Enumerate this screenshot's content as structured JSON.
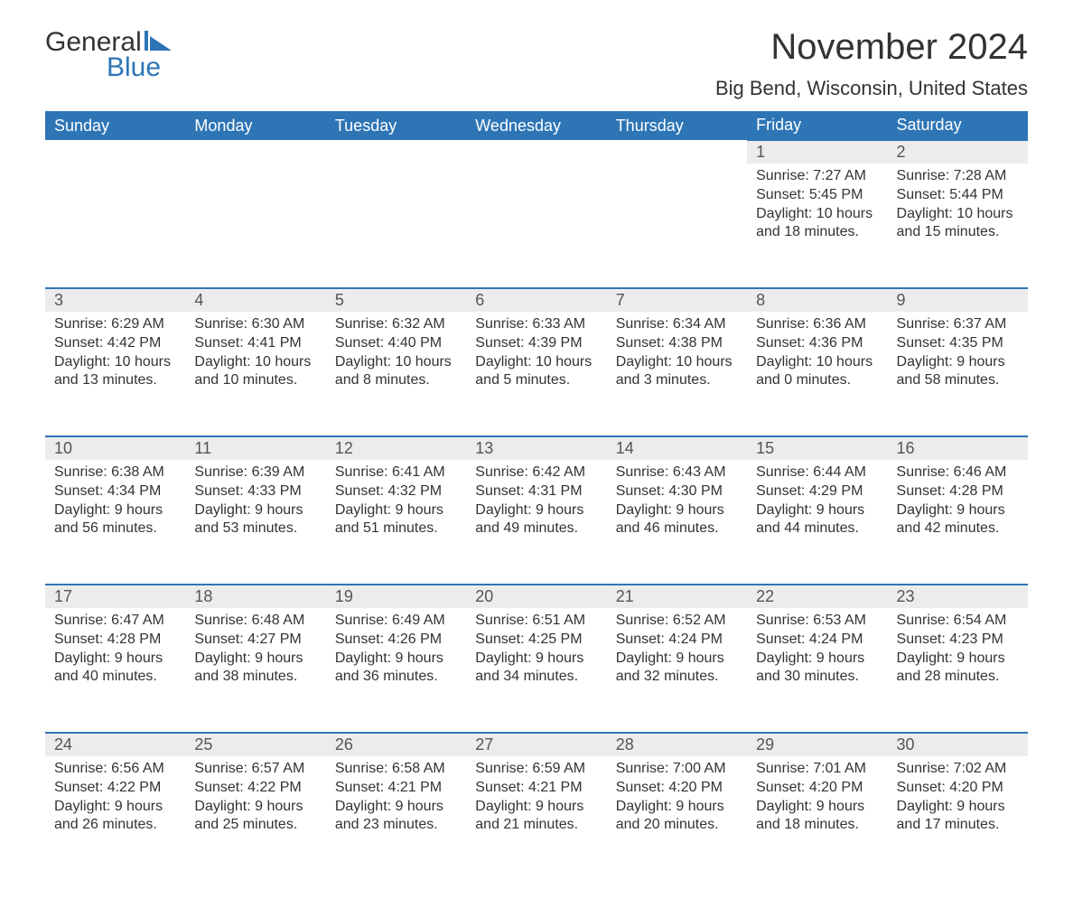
{
  "logo": {
    "word1": "General",
    "word2": "Blue"
  },
  "title": "November 2024",
  "location": "Big Bend, Wisconsin, United States",
  "colors": {
    "header_bg": "#2e75b6",
    "header_text": "#ffffff",
    "row_divider": "#2e75b6",
    "daynum_bg": "#ececec",
    "body_text": "#333333",
    "logo_accent": "#2e75b6",
    "page_bg": "#ffffff"
  },
  "day_headers": [
    "Sunday",
    "Monday",
    "Tuesday",
    "Wednesday",
    "Thursday",
    "Friday",
    "Saturday"
  ],
  "weeks": [
    [
      null,
      null,
      null,
      null,
      null,
      {
        "n": "1",
        "sunrise": "7:27 AM",
        "sunset": "5:45 PM",
        "day_h": "10",
        "day_m": "18"
      },
      {
        "n": "2",
        "sunrise": "7:28 AM",
        "sunset": "5:44 PM",
        "day_h": "10",
        "day_m": "15"
      }
    ],
    [
      {
        "n": "3",
        "sunrise": "6:29 AM",
        "sunset": "4:42 PM",
        "day_h": "10",
        "day_m": "13"
      },
      {
        "n": "4",
        "sunrise": "6:30 AM",
        "sunset": "4:41 PM",
        "day_h": "10",
        "day_m": "10"
      },
      {
        "n": "5",
        "sunrise": "6:32 AM",
        "sunset": "4:40 PM",
        "day_h": "10",
        "day_m": "8"
      },
      {
        "n": "6",
        "sunrise": "6:33 AM",
        "sunset": "4:39 PM",
        "day_h": "10",
        "day_m": "5"
      },
      {
        "n": "7",
        "sunrise": "6:34 AM",
        "sunset": "4:38 PM",
        "day_h": "10",
        "day_m": "3"
      },
      {
        "n": "8",
        "sunrise": "6:36 AM",
        "sunset": "4:36 PM",
        "day_h": "10",
        "day_m": "0"
      },
      {
        "n": "9",
        "sunrise": "6:37 AM",
        "sunset": "4:35 PM",
        "day_h": "9",
        "day_m": "58"
      }
    ],
    [
      {
        "n": "10",
        "sunrise": "6:38 AM",
        "sunset": "4:34 PM",
        "day_h": "9",
        "day_m": "56"
      },
      {
        "n": "11",
        "sunrise": "6:39 AM",
        "sunset": "4:33 PM",
        "day_h": "9",
        "day_m": "53"
      },
      {
        "n": "12",
        "sunrise": "6:41 AM",
        "sunset": "4:32 PM",
        "day_h": "9",
        "day_m": "51"
      },
      {
        "n": "13",
        "sunrise": "6:42 AM",
        "sunset": "4:31 PM",
        "day_h": "9",
        "day_m": "49"
      },
      {
        "n": "14",
        "sunrise": "6:43 AM",
        "sunset": "4:30 PM",
        "day_h": "9",
        "day_m": "46"
      },
      {
        "n": "15",
        "sunrise": "6:44 AM",
        "sunset": "4:29 PM",
        "day_h": "9",
        "day_m": "44"
      },
      {
        "n": "16",
        "sunrise": "6:46 AM",
        "sunset": "4:28 PM",
        "day_h": "9",
        "day_m": "42"
      }
    ],
    [
      {
        "n": "17",
        "sunrise": "6:47 AM",
        "sunset": "4:28 PM",
        "day_h": "9",
        "day_m": "40"
      },
      {
        "n": "18",
        "sunrise": "6:48 AM",
        "sunset": "4:27 PM",
        "day_h": "9",
        "day_m": "38"
      },
      {
        "n": "19",
        "sunrise": "6:49 AM",
        "sunset": "4:26 PM",
        "day_h": "9",
        "day_m": "36"
      },
      {
        "n": "20",
        "sunrise": "6:51 AM",
        "sunset": "4:25 PM",
        "day_h": "9",
        "day_m": "34"
      },
      {
        "n": "21",
        "sunrise": "6:52 AM",
        "sunset": "4:24 PM",
        "day_h": "9",
        "day_m": "32"
      },
      {
        "n": "22",
        "sunrise": "6:53 AM",
        "sunset": "4:24 PM",
        "day_h": "9",
        "day_m": "30"
      },
      {
        "n": "23",
        "sunrise": "6:54 AM",
        "sunset": "4:23 PM",
        "day_h": "9",
        "day_m": "28"
      }
    ],
    [
      {
        "n": "24",
        "sunrise": "6:56 AM",
        "sunset": "4:22 PM",
        "day_h": "9",
        "day_m": "26"
      },
      {
        "n": "25",
        "sunrise": "6:57 AM",
        "sunset": "4:22 PM",
        "day_h": "9",
        "day_m": "25"
      },
      {
        "n": "26",
        "sunrise": "6:58 AM",
        "sunset": "4:21 PM",
        "day_h": "9",
        "day_m": "23"
      },
      {
        "n": "27",
        "sunrise": "6:59 AM",
        "sunset": "4:21 PM",
        "day_h": "9",
        "day_m": "21"
      },
      {
        "n": "28",
        "sunrise": "7:00 AM",
        "sunset": "4:20 PM",
        "day_h": "9",
        "day_m": "20"
      },
      {
        "n": "29",
        "sunrise": "7:01 AM",
        "sunset": "4:20 PM",
        "day_h": "9",
        "day_m": "18"
      },
      {
        "n": "30",
        "sunrise": "7:02 AM",
        "sunset": "4:20 PM",
        "day_h": "9",
        "day_m": "17"
      }
    ]
  ],
  "labels": {
    "sunrise": "Sunrise: ",
    "sunset": "Sunset: ",
    "daylight_prefix": "Daylight: ",
    "hours_word": " hours",
    "and_word": "and ",
    "minutes_word": " minutes."
  }
}
